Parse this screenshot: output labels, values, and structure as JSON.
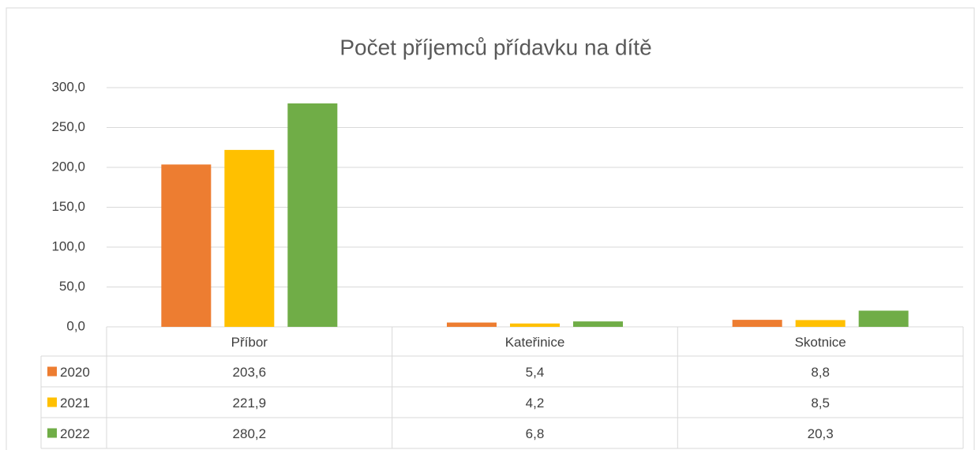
{
  "chart_data": {
    "type": "bar",
    "title": "Počet příjemců přídavku na dítě",
    "categories": [
      "Příbor",
      "Kateřinice",
      "Skotnice"
    ],
    "series": [
      {
        "name": "2020",
        "color": "#ed7d31",
        "values": [
          203.6,
          5.4,
          8.8
        ],
        "value_labels": [
          "203,6",
          "5,4",
          "8,8"
        ]
      },
      {
        "name": "2021",
        "color": "#ffc000",
        "values": [
          221.9,
          4.2,
          8.5
        ],
        "value_labels": [
          "221,9",
          "4,2",
          "8,5"
        ]
      },
      {
        "name": "2022",
        "color": "#70ad47",
        "values": [
          280.2,
          6.8,
          20.3
        ],
        "value_labels": [
          "280,2",
          "6,8",
          "20,3"
        ]
      }
    ],
    "ylim": [
      0,
      300
    ],
    "yticks": [
      {
        "value": 0,
        "label": "0,0"
      },
      {
        "value": 50,
        "label": "50,0"
      },
      {
        "value": 100,
        "label": "100,0"
      },
      {
        "value": 150,
        "label": "150,0"
      },
      {
        "value": 200,
        "label": "200,0"
      },
      {
        "value": 250,
        "label": "250,0"
      },
      {
        "value": 300,
        "label": "300,0"
      }
    ],
    "grid": true
  }
}
